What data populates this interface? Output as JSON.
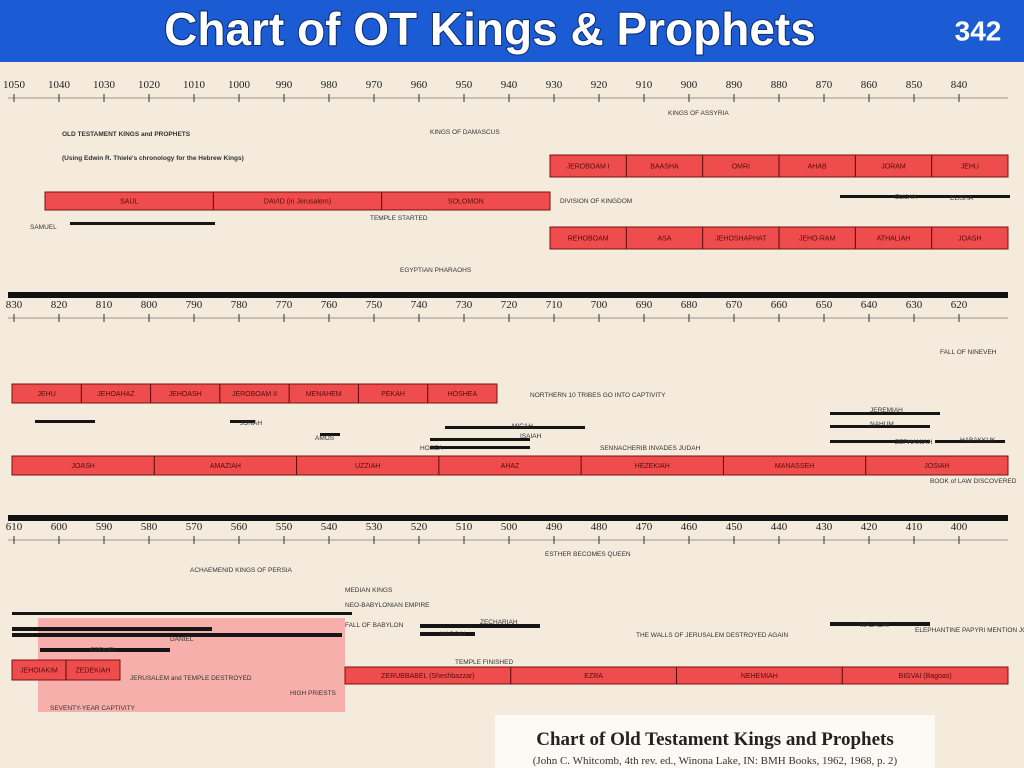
{
  "header": {
    "title": "Chart of OT Kings & Prophets",
    "page_number": "342"
  },
  "timelines": [
    {
      "years": [
        "1050",
        "1040",
        "1030",
        "1020",
        "1010",
        "1000",
        "990",
        "980",
        "970",
        "960",
        "950",
        "940",
        "930",
        "920",
        "910",
        "900",
        "890",
        "880",
        "870",
        "860",
        "850",
        "840"
      ],
      "bars": [
        {
          "segments": [
            "SAUL",
            "DAVID (in Jerusalem)",
            "SOLOMON"
          ]
        },
        {
          "segments": [
            "JEROBOAM I",
            "BAASHA",
            "OMRI",
            "AHAB",
            "JORAM",
            "JEHU"
          ]
        },
        {
          "segments": [
            "REHOBOAM",
            "ASA",
            "JEHOSHAPHAT",
            "JEHO-RAM",
            "ATHALIAH",
            "JOASH"
          ]
        }
      ]
    },
    {
      "years": [
        "830",
        "820",
        "810",
        "800",
        "790",
        "780",
        "770",
        "760",
        "750",
        "740",
        "730",
        "720",
        "710",
        "700",
        "690",
        "680",
        "670",
        "660",
        "650",
        "640",
        "630",
        "620"
      ],
      "bars": [
        {
          "segments": [
            "JEHU",
            "JEHOAHAZ",
            "JEHOASH",
            "JEROBOAM II",
            "MENAHEM",
            "PEKAH",
            "HOSHEA"
          ]
        },
        {
          "segments": [
            "JOASH",
            "AMAZIAH",
            "UZZIAH",
            "AHAZ",
            "HEZEKIAH",
            "MANASSEH",
            "JOSIAH"
          ]
        }
      ]
    },
    {
      "years": [
        "610",
        "600",
        "590",
        "580",
        "570",
        "560",
        "550",
        "540",
        "530",
        "520",
        "510",
        "500",
        "490",
        "480",
        "470",
        "460",
        "450",
        "440",
        "430",
        "420",
        "410",
        "400"
      ],
      "bars": [
        {
          "segments": [
            "JEHOIAKIM",
            "ZEDEKIAH"
          ]
        },
        {
          "segments": [
            "ZERUBBABEL (Sheshbazzar)",
            "EZRA",
            "NEHEMIAH",
            "BIGVAI (Bagoas)"
          ]
        }
      ]
    }
  ],
  "notes": [
    "OLD TESTAMENT KINGS and PROPHETS",
    "(Using Edwin R. Thiele's chronology for the Hebrew Kings)",
    "DIVISION OF KINGDOM",
    "TEMPLE STARTED",
    "KINGS OF ASSYRIA",
    "KINGS OF DAMASCUS",
    "EGYPTIAN PHARAOHS",
    "SAMUEL",
    "ELIJAH",
    "ELISHA",
    "NORTHERN 10 TRIBES GO INTO CAPTIVITY",
    "SENNACHERIB INVADES JUDAH",
    "FALL OF NINEVEH",
    "BOOK of LAW DISCOVERED",
    "JONAH",
    "AMOS",
    "HOSEA",
    "ISAIAH",
    "MICAH",
    "NAHUM",
    "ZEPHANIAH",
    "HABAKKUK",
    "JEREMIAH",
    "FALL OF BABYLON",
    "DANIEL",
    "EZEKIEL",
    "HAGGAI",
    "ZECHARIAH",
    "MALACHI",
    "SEVENTY-YEAR CAPTIVITY",
    "JERUSALEM and TEMPLE DESTROYED",
    "TEMPLE FINISHED",
    "ESTHER BECOMES QUEEN",
    "THE WALLS OF JERUSALEM DESTROYED AGAIN",
    "ELEPHANTINE PAPYRI MENTION JOHANAN AS HIGH PRIEST",
    "HIGH PRIESTS",
    "NEO-BABYLONIAN EMPIRE",
    "MEDIAN KINGS",
    "ACHAEMENID KINGS OF PERSIA"
  ],
  "caption": {
    "title": "Chart of Old Testament Kings and Prophets",
    "citation": "(John C. Whitcomb, 4th rev. ed., Winona Lake, IN: BMH Books, 1962, 1968, p. 2)"
  }
}
